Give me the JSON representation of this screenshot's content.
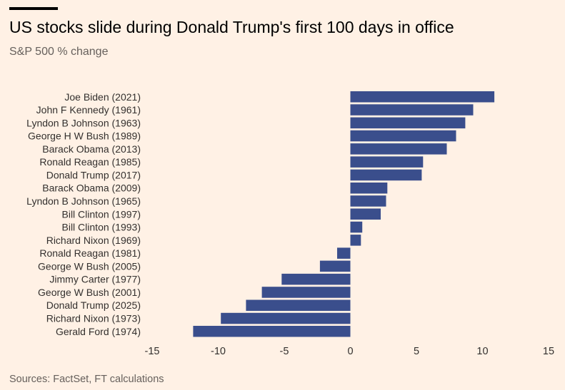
{
  "header": {
    "title": "US stocks slide during Donald Trump's first 100 days in office",
    "subtitle": "S&P 500 % change"
  },
  "footer": {
    "source": "Sources: FactSet, FT calculations"
  },
  "colors": {
    "bar": "#3a4e8c",
    "background": "#fff1e5",
    "text": "#33302e",
    "muted": "#66605c"
  },
  "chart_data": {
    "type": "bar",
    "orientation": "horizontal",
    "categories": [
      "Joe Biden (2021)",
      "John F Kennedy (1961)",
      "Lyndon B Johnson (1963)",
      "George H W Bush (1989)",
      "Barack Obama (2013)",
      "Ronald Reagan (1985)",
      "Donald Trump (2017)",
      "Barack Obama (2009)",
      "Lyndon B Johnson (1965)",
      "Bill Clinton (1997)",
      "Bill Clinton (1993)",
      "Richard Nixon (1969)",
      "Ronald Reagan (1981)",
      "George W Bush (2005)",
      "Jimmy Carter (1977)",
      "George W Bush (2001)",
      "Donald Trump (2025)",
      "Richard Nixon (1973)",
      "Gerald Ford (1974)"
    ],
    "values": [
      10.9,
      9.3,
      8.7,
      8.0,
      7.3,
      5.5,
      5.4,
      2.8,
      2.7,
      2.3,
      0.9,
      0.8,
      -1.0,
      -2.3,
      -5.2,
      -6.7,
      -7.9,
      -9.8,
      -11.9
    ],
    "xlim": [
      -15,
      15
    ],
    "xticks": [
      -15,
      -10,
      -5,
      0,
      5,
      10,
      15
    ],
    "title": "US stocks slide during Donald Trump's first 100 days in office",
    "subtitle": "S&P 500 % change",
    "xlabel": "",
    "ylabel": "",
    "grid": false
  }
}
